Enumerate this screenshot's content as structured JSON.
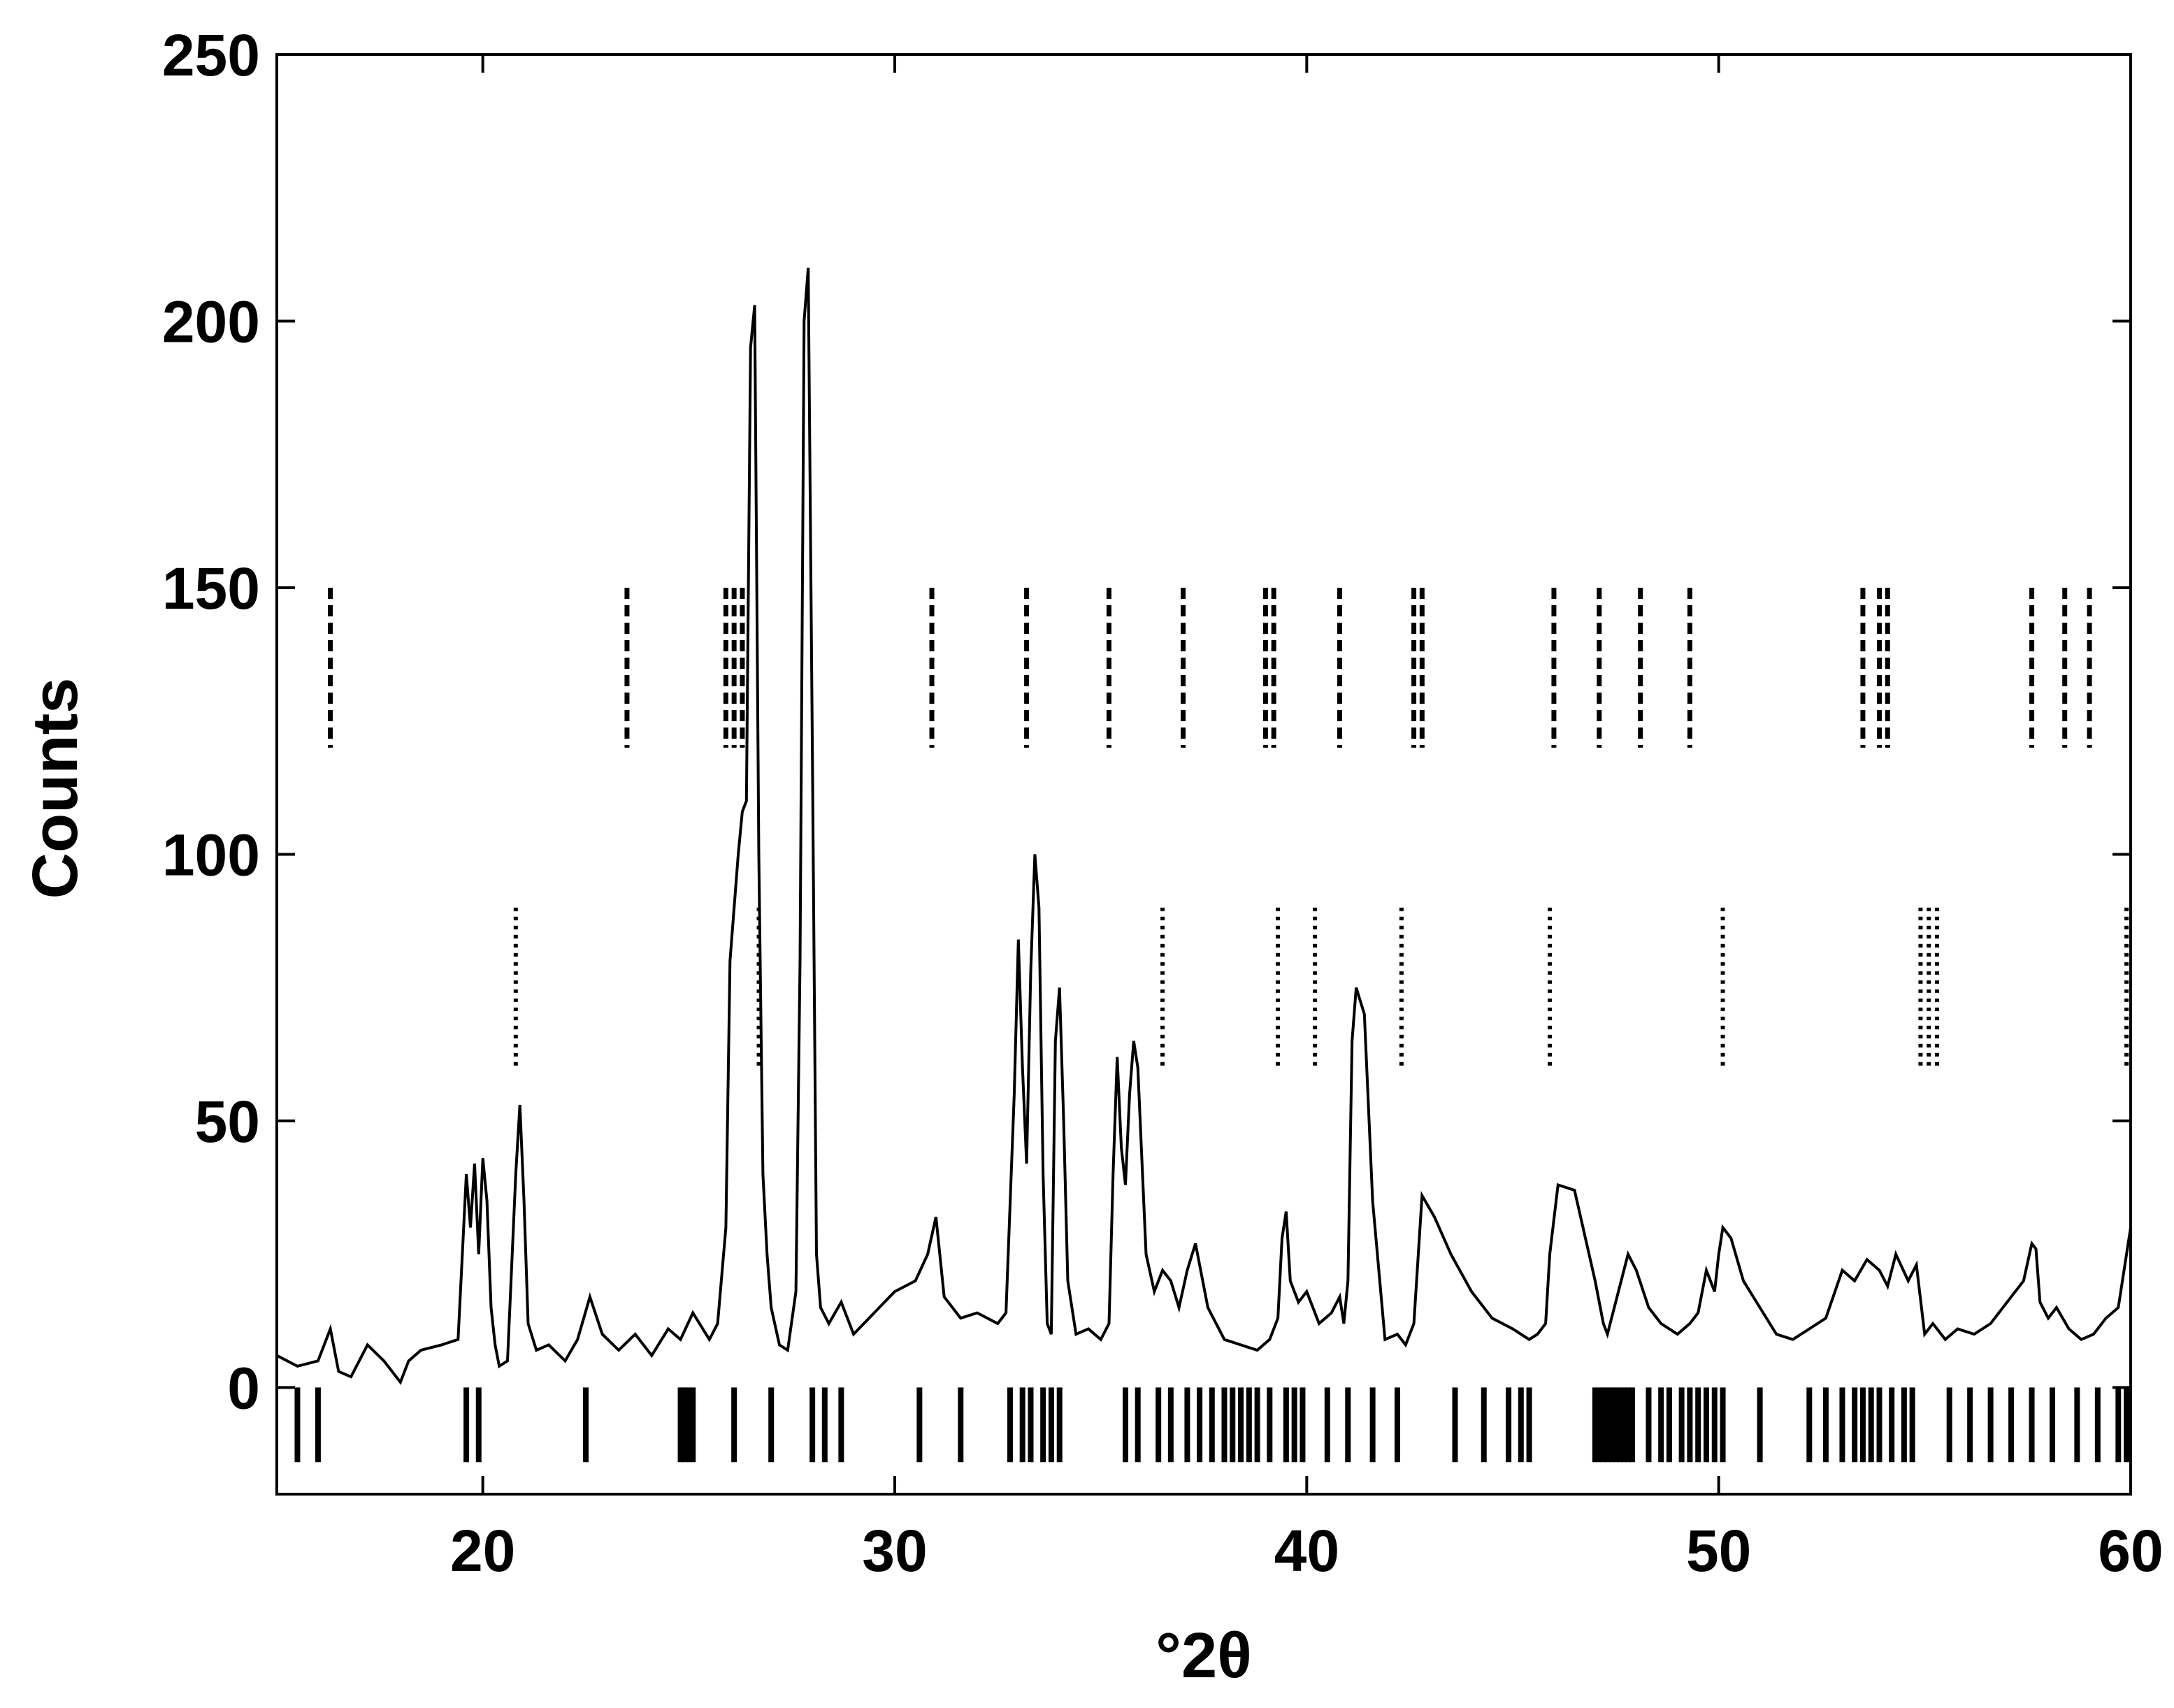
{
  "chart_data": {
    "type": "line",
    "xlabel": "°2θ",
    "ylabel": "Counts",
    "xlim": [
      15,
      60
    ],
    "ylim": [
      -20,
      250
    ],
    "xticks": [
      20,
      30,
      40,
      50,
      60
    ],
    "yticks": [
      0,
      50,
      100,
      150,
      200,
      250
    ],
    "grid": false,
    "legend": "none",
    "pattern": {
      "x": [
        15,
        15.5,
        16,
        16.3,
        16.5,
        16.8,
        17.2,
        17.6,
        18,
        18.2,
        18.5,
        19,
        19.4,
        19.6,
        19.7,
        19.8,
        19.9,
        20,
        20.1,
        20.2,
        20.3,
        20.4,
        20.6,
        20.8,
        20.9,
        21,
        21.1,
        21.3,
        21.6,
        22,
        22.3,
        22.6,
        22.9,
        23.3,
        23.7,
        24.1,
        24.5,
        24.8,
        25.1,
        25.5,
        25.7,
        25.9,
        26,
        26.1,
        26.2,
        26.3,
        26.4,
        26.5,
        26.6,
        26.7,
        26.8,
        26.9,
        27,
        27.2,
        27.4,
        27.6,
        27.7,
        27.8,
        27.9,
        28,
        28.1,
        28.2,
        28.4,
        28.7,
        29,
        29.5,
        30,
        30.5,
        30.8,
        31,
        31.2,
        31.6,
        32,
        32.5,
        32.7,
        32.9,
        33,
        33.1,
        33.2,
        33.3,
        33.4,
        33.5,
        33.6,
        33.7,
        33.8,
        33.9,
        34,
        34.1,
        34.2,
        34.4,
        34.7,
        35,
        35.2,
        35.3,
        35.4,
        35.5,
        35.6,
        35.7,
        35.8,
        35.9,
        36.1,
        36.3,
        36.5,
        36.7,
        36.9,
        37.1,
        37.3,
        37.6,
        38,
        38.4,
        38.8,
        39.1,
        39.3,
        39.4,
        39.5,
        39.6,
        39.8,
        40,
        40.3,
        40.6,
        40.8,
        40.9,
        41,
        41.1,
        41.2,
        41.4,
        41.6,
        41.9,
        42.2,
        42.4,
        42.6,
        42.8,
        43.1,
        43.5,
        44,
        44.5,
        45,
        45.4,
        45.6,
        45.7,
        45.8,
        45.9,
        46.1,
        46.5,
        47,
        47.2,
        47.3,
        47.5,
        47.8,
        48,
        48.3,
        48.6,
        49,
        49.3,
        49.5,
        49.7,
        49.9,
        50,
        50.1,
        50.3,
        50.6,
        51,
        51.4,
        51.8,
        52.2,
        52.6,
        53,
        53.3,
        53.6,
        53.9,
        54.1,
        54.3,
        54.6,
        54.8,
        55,
        55.2,
        55.5,
        55.8,
        56.2,
        56.6,
        57,
        57.4,
        57.6,
        57.7,
        57.8,
        58,
        58.2,
        58.5,
        58.8,
        59.1,
        59.4,
        59.7,
        60
      ],
      "y": [
        6,
        4,
        5,
        11,
        3,
        2,
        8,
        5,
        1,
        5,
        7,
        8,
        9,
        40,
        30,
        42,
        25,
        43,
        35,
        15,
        8,
        4,
        5,
        40,
        53,
        35,
        12,
        7,
        8,
        5,
        9,
        17,
        10,
        7,
        10,
        6,
        11,
        9,
        14,
        9,
        12,
        30,
        80,
        90,
        100,
        108,
        110,
        195,
        203,
        100,
        40,
        25,
        15,
        8,
        7,
        18,
        80,
        200,
        210,
        120,
        25,
        15,
        12,
        16,
        10,
        14,
        18,
        20,
        25,
        32,
        17,
        13,
        14,
        12,
        14,
        55,
        84,
        60,
        42,
        78,
        100,
        90,
        40,
        12,
        10,
        65,
        75,
        50,
        20,
        10,
        11,
        9,
        12,
        40,
        62,
        45,
        38,
        55,
        65,
        60,
        25,
        18,
        22,
        20,
        15,
        22,
        27,
        15,
        9,
        8,
        7,
        9,
        13,
        28,
        33,
        20,
        16,
        18,
        12,
        14,
        17,
        12,
        20,
        65,
        75,
        70,
        35,
        9,
        10,
        8,
        12,
        36,
        32,
        25,
        18,
        13,
        11,
        9,
        10,
        11,
        12,
        25,
        38,
        37,
        20,
        12,
        10,
        16,
        25,
        22,
        15,
        12,
        10,
        12,
        14,
        22,
        18,
        25,
        30,
        28,
        20,
        15,
        10,
        9,
        11,
        13,
        22,
        20,
        24,
        22,
        19,
        25,
        20,
        23,
        10,
        12,
        9,
        11,
        10,
        12,
        16,
        20,
        27,
        26,
        16,
        13,
        15,
        11,
        9,
        10,
        13,
        15,
        30
      ]
    },
    "tick_rows": [
      {
        "name": "",
        "style": "dashed",
        "y_range": [
          120,
          150
        ],
        "x": [
          16.3,
          23.5,
          25.9,
          26.1,
          26.3,
          30.9,
          33.2,
          35.2,
          37,
          39,
          39.2,
          40.8,
          42.6,
          42.8,
          46,
          47.1,
          48.1,
          49.3,
          53.5,
          53.9,
          54.1,
          57.6,
          58.4,
          59
        ]
      },
      {
        "name": "",
        "style": "dotted",
        "y_range": [
          60,
          90
        ],
        "x": [
          20.8,
          26.7,
          36.5,
          39.3,
          40.2,
          42.3,
          45.9,
          50.1,
          54.9,
          55.1,
          55.3,
          59.9
        ]
      },
      {
        "name": "",
        "style": "solid",
        "y_range": [
          -14,
          0
        ],
        "x": [
          15.5,
          16,
          19.6,
          19.9,
          22.5,
          24.8,
          24.9,
          25,
          25.1,
          26.1,
          27,
          28,
          28.3,
          28.7,
          30.6,
          31.6,
          32.8,
          33.1,
          33.3,
          33.6,
          33.8,
          34,
          35.6,
          35.9,
          36.4,
          36.7,
          37.1,
          37.4,
          37.7,
          38,
          38.2,
          38.4,
          38.6,
          38.8,
          39.1,
          39.5,
          39.7,
          39.9,
          40.5,
          41,
          41.6,
          42.2,
          43.6,
          44.3,
          44.9,
          45.2,
          45.4,
          47,
          47.1,
          47.2,
          47.3,
          47.4,
          47.5,
          47.6,
          47.7,
          47.8,
          47.9,
          48.3,
          48.6,
          48.8,
          49.1,
          49.3,
          49.5,
          49.7,
          49.9,
          50.1,
          51,
          52.2,
          52.6,
          53,
          53.3,
          53.5,
          53.7,
          53.9,
          54.2,
          54.5,
          54.7,
          55.6,
          56.1,
          56.6,
          57.1,
          57.6,
          58.1,
          58.7,
          59.2,
          59.7,
          59.9
        ]
      }
    ]
  }
}
